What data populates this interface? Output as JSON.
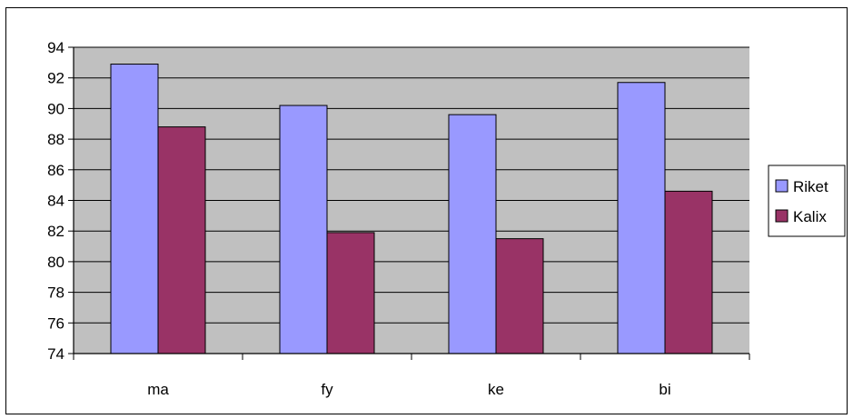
{
  "chart_data": {
    "type": "bar",
    "title": "",
    "xlabel": "",
    "ylabel": "",
    "categories": [
      "ma",
      "fy",
      "ke",
      "bi"
    ],
    "series": [
      {
        "name": "Riket",
        "color": "#9999ff",
        "values": [
          92.9,
          90.2,
          89.6,
          91.7
        ]
      },
      {
        "name": "Kalix",
        "color": "#993366",
        "values": [
          88.8,
          81.9,
          81.5,
          84.6
        ]
      }
    ],
    "ylim": [
      74,
      94
    ],
    "yticks": [
      94,
      92,
      90,
      88,
      86,
      84,
      82,
      80,
      78,
      76,
      74
    ],
    "grid": true,
    "plot_background": "#c0c0c0",
    "legend_position": "right"
  }
}
